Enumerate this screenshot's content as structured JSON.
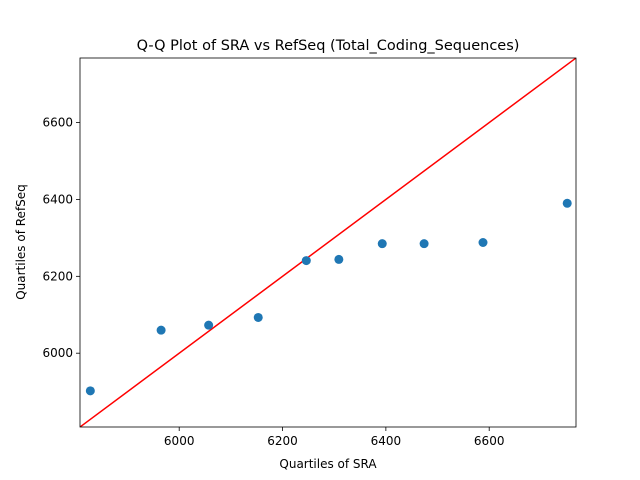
{
  "chart_data": {
    "type": "scatter",
    "title": "Q-Q Plot of SRA vs RefSeq (Total_Coding_Sequences)",
    "xlabel": "Quartiles of SRA",
    "ylabel": "Quartiles of RefSeq",
    "xlim": [
      5808,
      6768
    ],
    "ylim": [
      5808,
      6768
    ],
    "xticks": [
      6000,
      6200,
      6400,
      6600
    ],
    "yticks": [
      6000,
      6200,
      6400,
      6600
    ],
    "grid": false,
    "points": [
      {
        "x": 5828,
        "y": 5902
      },
      {
        "x": 5965,
        "y": 6060
      },
      {
        "x": 6057,
        "y": 6073
      },
      {
        "x": 6153,
        "y": 6093
      },
      {
        "x": 6246,
        "y": 6241
      },
      {
        "x": 6309,
        "y": 6244
      },
      {
        "x": 6393,
        "y": 6285
      },
      {
        "x": 6474,
        "y": 6285
      },
      {
        "x": 6588,
        "y": 6288
      },
      {
        "x": 6751,
        "y": 6390
      }
    ],
    "reference_line": {
      "from": [
        5808,
        5808
      ],
      "to": [
        6768,
        6768
      ]
    },
    "colors": {
      "points": "#1f77b4",
      "reference_line": "#ff0000"
    }
  }
}
